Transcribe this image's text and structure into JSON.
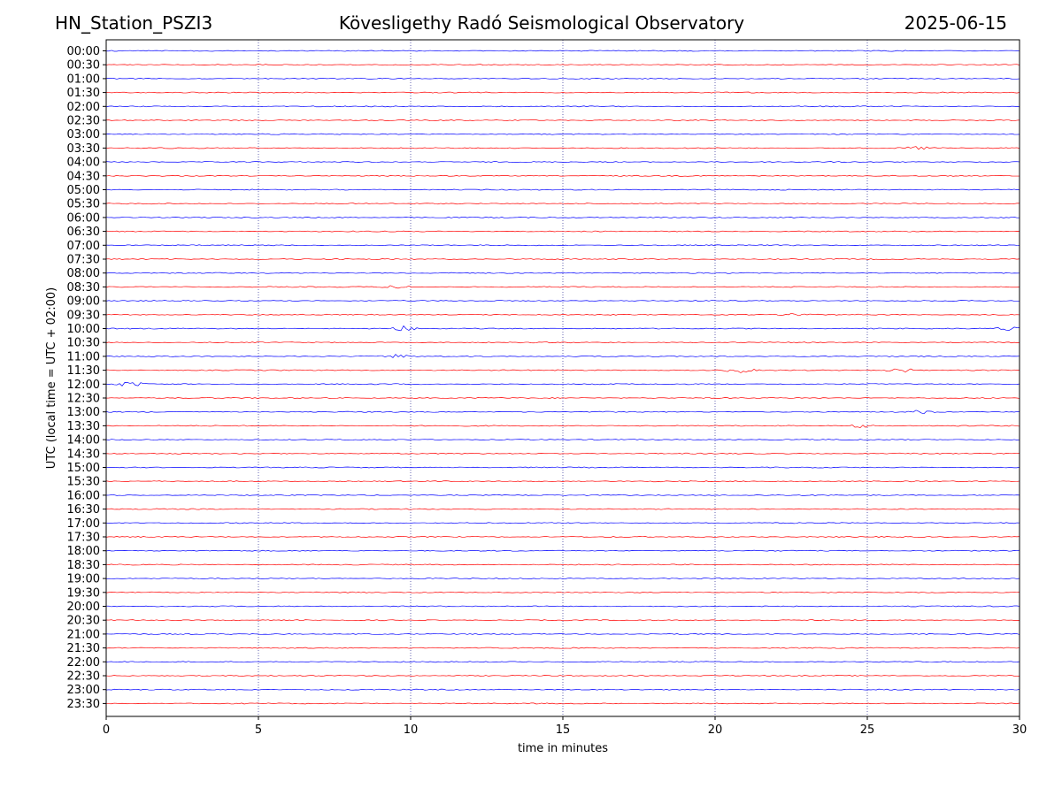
{
  "header": {
    "station": "HN_Station_PSZI3",
    "observatory": "Kövesligethy Radó Seismological Observatory",
    "date": "2025-06-15"
  },
  "chart_data": {
    "type": "line",
    "title": "Kövesligethy Radó Seismological Observatory",
    "xlabel": "time in minutes",
    "ylabel": "UTC (local time = UTC + 02:00)",
    "xlim": [
      0,
      30
    ],
    "x_ticks": [
      "0",
      "5",
      "10",
      "15",
      "20",
      "25",
      "30"
    ],
    "grid": "vertical dotted at 5-minute intervals",
    "series_colors": [
      "#0000ff",
      "#ff0000"
    ],
    "rows": [
      "00:00",
      "00:30",
      "01:00",
      "01:30",
      "02:00",
      "02:30",
      "03:00",
      "03:30",
      "04:00",
      "04:30",
      "05:00",
      "05:30",
      "06:00",
      "06:30",
      "07:00",
      "07:30",
      "08:00",
      "08:30",
      "09:00",
      "09:30",
      "10:00",
      "10:30",
      "11:00",
      "11:30",
      "12:00",
      "12:30",
      "13:00",
      "13:30",
      "14:00",
      "14:30",
      "15:00",
      "15:30",
      "16:00",
      "16:30",
      "17:00",
      "17:30",
      "18:00",
      "18:30",
      "19:00",
      "19:30",
      "20:00",
      "20:30",
      "21:00",
      "21:30",
      "22:00",
      "22:30",
      "23:00",
      "23:30"
    ],
    "events": [
      {
        "row": "03:30",
        "minute": 26.7,
        "amplitude": 2
      },
      {
        "row": "08:30",
        "minute": 9.6,
        "amplitude": 2
      },
      {
        "row": "09:30",
        "minute": 22.7,
        "amplitude": 2
      },
      {
        "row": "10:00",
        "minute": 9.7,
        "amplitude": 3
      },
      {
        "row": "10:00",
        "minute": 29.6,
        "amplitude": 2
      },
      {
        "row": "11:00",
        "minute": 9.5,
        "amplitude": 2
      },
      {
        "row": "11:30",
        "minute": 20.8,
        "amplitude": 3
      },
      {
        "row": "11:30",
        "minute": 26.1,
        "amplitude": 3
      },
      {
        "row": "12:00",
        "minute": 0.8,
        "amplitude": 3
      },
      {
        "row": "13:00",
        "minute": 26.8,
        "amplitude": 2
      },
      {
        "row": "13:30",
        "minute": 24.8,
        "amplitude": 2
      }
    ]
  }
}
